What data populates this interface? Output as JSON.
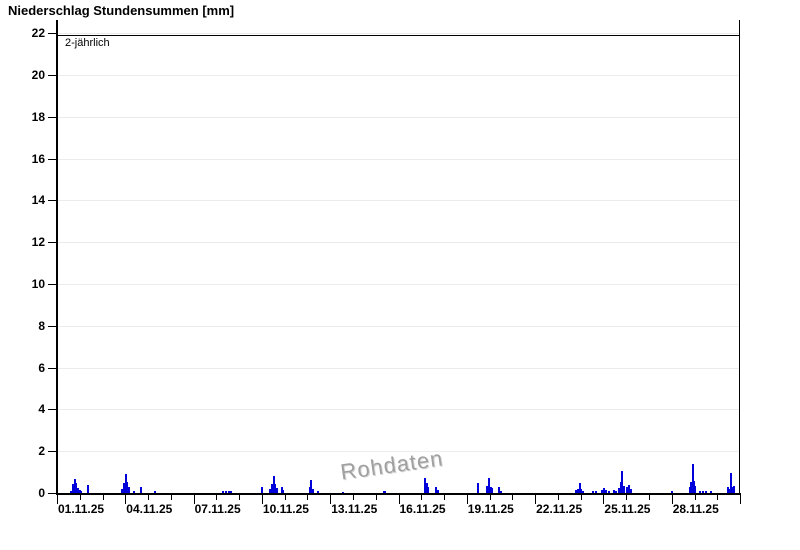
{
  "page": {
    "title": "Niederschlag Stundensummen [mm]"
  },
  "chart_data": {
    "type": "bar",
    "title": "Niederschlag Stundensummen [mm]",
    "watermark": "Rohdaten",
    "legend": "none",
    "grid": true,
    "grid_color": "#ececec",
    "threshold": {
      "label": "2-jährlich",
      "value": 21.9
    },
    "y_axis": {
      "min": 0,
      "max": 22,
      "tick_step": 2,
      "ticks": [
        0,
        2,
        4,
        6,
        8,
        10,
        12,
        14,
        16,
        18,
        20,
        22
      ],
      "unit": "mm"
    },
    "x_axis": {
      "start_date": "01.11.25",
      "days_total": 30,
      "minor_tick_interval_days": 1,
      "major_tick_interval_days": 3,
      "label_dates": [
        "01.11.25",
        "04.11.25",
        "07.11.25",
        "10.11.25",
        "13.11.25",
        "16.11.25",
        "19.11.25",
        "22.11.25",
        "25.11.25",
        "28.11.25"
      ],
      "label_day_offsets": [
        0,
        3,
        6,
        9,
        12,
        15,
        18,
        21,
        24,
        27
      ]
    },
    "series": [
      {
        "name": "Niederschlag Stundensummen",
        "unit": "mm",
        "color": "#0000d8",
        "points": [
          [
            0.61,
            0.1
          ],
          [
            0.66,
            0.25
          ],
          [
            0.7,
            0.45
          ],
          [
            0.75,
            0.67
          ],
          [
            0.79,
            0.5
          ],
          [
            0.83,
            0.3
          ],
          [
            0.88,
            0.25
          ],
          [
            0.92,
            0.2
          ],
          [
            0.97,
            0.15
          ],
          [
            1.01,
            0.12
          ],
          [
            1.32,
            0.4
          ],
          [
            2.85,
            0.2
          ],
          [
            2.9,
            0.3
          ],
          [
            2.94,
            0.5
          ],
          [
            2.99,
            0.9
          ],
          [
            3.03,
            0.55
          ],
          [
            3.07,
            0.4
          ],
          [
            3.12,
            0.3
          ],
          [
            3.34,
            0.12
          ],
          [
            3.65,
            0.3
          ],
          [
            4.3,
            0.12
          ],
          [
            7.25,
            0.08
          ],
          [
            7.38,
            0.1
          ],
          [
            7.51,
            0.12
          ],
          [
            7.64,
            0.08
          ],
          [
            9.0,
            0.3
          ],
          [
            9.35,
            0.2
          ],
          [
            9.44,
            0.45
          ],
          [
            9.49,
            0.8
          ],
          [
            9.53,
            0.45
          ],
          [
            9.62,
            0.25
          ],
          [
            9.88,
            0.3
          ],
          [
            9.92,
            0.15
          ],
          [
            11.11,
            0.3
          ],
          [
            11.15,
            0.62
          ],
          [
            11.2,
            0.2
          ],
          [
            11.46,
            0.1
          ],
          [
            12.56,
            0.06
          ],
          [
            14.32,
            0.12
          ],
          [
            14.4,
            0.08
          ],
          [
            16.12,
            0.45
          ],
          [
            16.16,
            0.72
          ],
          [
            16.21,
            0.5
          ],
          [
            16.25,
            0.3
          ],
          [
            16.29,
            0.2
          ],
          [
            16.64,
            0.3
          ],
          [
            16.73,
            0.15
          ],
          [
            18.45,
            0.48
          ],
          [
            18.88,
            0.35
          ],
          [
            18.93,
            0.72
          ],
          [
            18.97,
            0.5
          ],
          [
            19.02,
            0.3
          ],
          [
            19.1,
            0.25
          ],
          [
            19.37,
            0.3
          ],
          [
            19.46,
            0.12
          ],
          [
            22.79,
            0.15
          ],
          [
            22.88,
            0.2
          ],
          [
            22.93,
            0.46
          ],
          [
            22.97,
            0.2
          ],
          [
            23.01,
            0.15
          ],
          [
            23.1,
            0.1
          ],
          [
            23.54,
            0.08
          ],
          [
            23.67,
            0.1
          ],
          [
            23.93,
            0.15
          ],
          [
            24.02,
            0.22
          ],
          [
            24.11,
            0.15
          ],
          [
            24.2,
            0.1
          ],
          [
            24.42,
            0.15
          ],
          [
            24.51,
            0.1
          ],
          [
            24.68,
            0.25
          ],
          [
            24.77,
            0.55
          ],
          [
            24.81,
            1.05
          ],
          [
            24.86,
            0.35
          ],
          [
            25.03,
            0.3
          ],
          [
            25.08,
            0.4
          ],
          [
            25.12,
            0.3
          ],
          [
            25.21,
            0.2
          ],
          [
            27.01,
            0.1
          ],
          [
            27.8,
            0.3
          ],
          [
            27.84,
            0.55
          ],
          [
            27.89,
            0.6
          ],
          [
            27.93,
            1.4
          ],
          [
            27.97,
            0.6
          ],
          [
            28.02,
            0.35
          ],
          [
            28.24,
            0.1
          ],
          [
            28.37,
            0.12
          ],
          [
            28.5,
            0.1
          ],
          [
            28.72,
            0.08
          ],
          [
            29.47,
            0.3
          ],
          [
            29.51,
            0.2
          ],
          [
            29.6,
            0.97
          ],
          [
            29.64,
            0.3
          ],
          [
            29.73,
            0.35
          ]
        ]
      }
    ]
  }
}
